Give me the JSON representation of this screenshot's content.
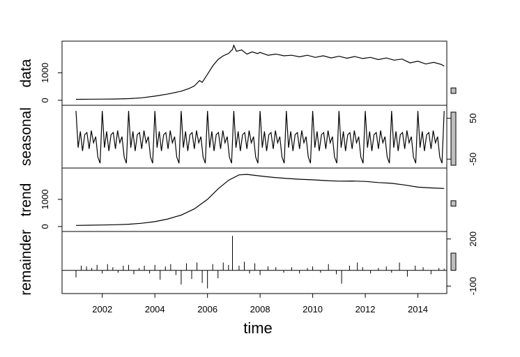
{
  "chart_data": {
    "type": "line",
    "title": "",
    "xlabel": "time",
    "x_range": [
      2001.0,
      2015.1
    ],
    "x_ticks": [
      2002,
      2004,
      2006,
      2008,
      2010,
      2012,
      2014
    ],
    "x_tick_labels": [
      "2002",
      "2004",
      "2006",
      "2008",
      "2010",
      "2012",
      "2014"
    ],
    "panels": [
      {
        "name": "data",
        "ylabel": "data",
        "ylim": [
          -80,
          2050
        ],
        "y_ticks": [
          0,
          1000
        ],
        "y_tick_labels": [
          "0",
          "1000"
        ],
        "tick_side": "left",
        "range_bar": [
          250,
          450
        ],
        "style": "line",
        "points": [
          [
            2001.0,
            35
          ],
          [
            2001.5,
            38
          ],
          [
            2002.0,
            42
          ],
          [
            2002.5,
            48
          ],
          [
            2003.0,
            60
          ],
          [
            2003.5,
            90
          ],
          [
            2004.0,
            150
          ],
          [
            2004.5,
            230
          ],
          [
            2005.0,
            330
          ],
          [
            2005.3,
            430
          ],
          [
            2005.5,
            520
          ],
          [
            2005.7,
            720
          ],
          [
            2005.8,
            650
          ],
          [
            2006.0,
            950
          ],
          [
            2006.2,
            1250
          ],
          [
            2006.4,
            1480
          ],
          [
            2006.6,
            1620
          ],
          [
            2006.8,
            1700
          ],
          [
            2006.95,
            1850
          ],
          [
            2007.0,
            2000
          ],
          [
            2007.1,
            1780
          ],
          [
            2007.3,
            1830
          ],
          [
            2007.5,
            1680
          ],
          [
            2007.7,
            1760
          ],
          [
            2007.9,
            1700
          ],
          [
            2008.0,
            1740
          ],
          [
            2008.3,
            1640
          ],
          [
            2008.6,
            1680
          ],
          [
            2008.9,
            1620
          ],
          [
            2009.2,
            1640
          ],
          [
            2009.5,
            1580
          ],
          [
            2009.8,
            1640
          ],
          [
            2010.1,
            1560
          ],
          [
            2010.4,
            1620
          ],
          [
            2010.7,
            1540
          ],
          [
            2011.0,
            1600
          ],
          [
            2011.3,
            1530
          ],
          [
            2011.6,
            1590
          ],
          [
            2011.9,
            1520
          ],
          [
            2012.2,
            1560
          ],
          [
            2012.5,
            1480
          ],
          [
            2012.8,
            1540
          ],
          [
            2013.1,
            1460
          ],
          [
            2013.4,
            1500
          ],
          [
            2013.7,
            1360
          ],
          [
            2014.0,
            1420
          ],
          [
            2014.3,
            1320
          ],
          [
            2014.6,
            1380
          ],
          [
            2014.9,
            1300
          ],
          [
            2015.0,
            1240
          ]
        ]
      },
      {
        "name": "seasonal",
        "ylabel": "seasonal",
        "ylim": [
          -65,
          75
        ],
        "y_ticks": [
          -50,
          50
        ],
        "y_tick_labels": [
          "-50",
          "50"
        ],
        "tick_side": "right",
        "range_bar": [
          -65,
          65
        ],
        "style": "line",
        "period": 1,
        "cycle": [
          68,
          -22,
          18,
          -30,
          10,
          15,
          -25,
          20,
          -10,
          5,
          -45,
          -60
        ],
        "points": []
      },
      {
        "name": "trend",
        "ylabel": "trend",
        "ylim": [
          -80,
          2050
        ],
        "y_ticks": [
          0,
          1000
        ],
        "y_tick_labels": [
          "0",
          "1000"
        ],
        "tick_side": "left",
        "range_bar": [
          750,
          950
        ],
        "style": "line",
        "points": [
          [
            2001.0,
            40
          ],
          [
            2001.5,
            48
          ],
          [
            2002.0,
            55
          ],
          [
            2002.5,
            65
          ],
          [
            2003.0,
            85
          ],
          [
            2003.5,
            120
          ],
          [
            2004.0,
            180
          ],
          [
            2004.5,
            280
          ],
          [
            2005.0,
            420
          ],
          [
            2005.5,
            650
          ],
          [
            2006.0,
            1000
          ],
          [
            2006.4,
            1380
          ],
          [
            2006.8,
            1700
          ],
          [
            2007.2,
            1900
          ],
          [
            2007.5,
            1920
          ],
          [
            2008.0,
            1860
          ],
          [
            2008.5,
            1810
          ],
          [
            2009.0,
            1770
          ],
          [
            2009.5,
            1740
          ],
          [
            2010.0,
            1720
          ],
          [
            2010.5,
            1690
          ],
          [
            2011.0,
            1670
          ],
          [
            2011.5,
            1675
          ],
          [
            2012.0,
            1660
          ],
          [
            2012.5,
            1620
          ],
          [
            2013.0,
            1590
          ],
          [
            2013.5,
            1530
          ],
          [
            2014.0,
            1450
          ],
          [
            2014.5,
            1420
          ],
          [
            2015.0,
            1400
          ]
        ]
      },
      {
        "name": "remainder",
        "ylabel": "remainder",
        "ylim": [
          -130,
          230
        ],
        "y_ticks": [
          -100,
          200
        ],
        "y_tick_labels": [
          "-100",
          "200"
        ],
        "tick_side": "right",
        "range_bar": [
          0,
          110
        ],
        "style": "bars",
        "points": [
          [
            2001.0,
            -45
          ],
          [
            2001.2,
            30
          ],
          [
            2001.4,
            25
          ],
          [
            2001.6,
            15
          ],
          [
            2001.8,
            35
          ],
          [
            2002.0,
            -20
          ],
          [
            2002.2,
            40
          ],
          [
            2002.4,
            20
          ],
          [
            2002.6,
            -15
          ],
          [
            2002.8,
            30
          ],
          [
            2003.0,
            35
          ],
          [
            2003.2,
            -25
          ],
          [
            2003.4,
            15
          ],
          [
            2003.6,
            30
          ],
          [
            2003.8,
            -20
          ],
          [
            2004.0,
            35
          ],
          [
            2004.2,
            -60
          ],
          [
            2004.4,
            25
          ],
          [
            2004.6,
            40
          ],
          [
            2004.8,
            -30
          ],
          [
            2005.0,
            -90
          ],
          [
            2005.2,
            45
          ],
          [
            2005.4,
            -55
          ],
          [
            2005.6,
            50
          ],
          [
            2005.8,
            -80
          ],
          [
            2006.0,
            -115
          ],
          [
            2006.2,
            40
          ],
          [
            2006.4,
            -50
          ],
          [
            2006.6,
            50
          ],
          [
            2006.8,
            35
          ],
          [
            2006.95,
            220
          ],
          [
            2007.2,
            30
          ],
          [
            2007.4,
            55
          ],
          [
            2007.6,
            -20
          ],
          [
            2007.8,
            45
          ],
          [
            2008.0,
            -30
          ],
          [
            2008.3,
            25
          ],
          [
            2008.6,
            20
          ],
          [
            2008.9,
            -15
          ],
          [
            2009.2,
            20
          ],
          [
            2009.5,
            -20
          ],
          [
            2009.8,
            15
          ],
          [
            2010.0,
            25
          ],
          [
            2010.3,
            -15
          ],
          [
            2010.6,
            40
          ],
          [
            2010.9,
            -25
          ],
          [
            2011.1,
            -85
          ],
          [
            2011.4,
            30
          ],
          [
            2011.7,
            50
          ],
          [
            2011.9,
            20
          ],
          [
            2012.2,
            -20
          ],
          [
            2012.5,
            15
          ],
          [
            2012.8,
            25
          ],
          [
            2013.0,
            -15
          ],
          [
            2013.3,
            50
          ],
          [
            2013.6,
            -40
          ],
          [
            2013.9,
            30
          ],
          [
            2014.2,
            20
          ],
          [
            2014.5,
            -25
          ],
          [
            2014.8,
            15
          ],
          [
            2015.0,
            10
          ]
        ]
      }
    ]
  }
}
